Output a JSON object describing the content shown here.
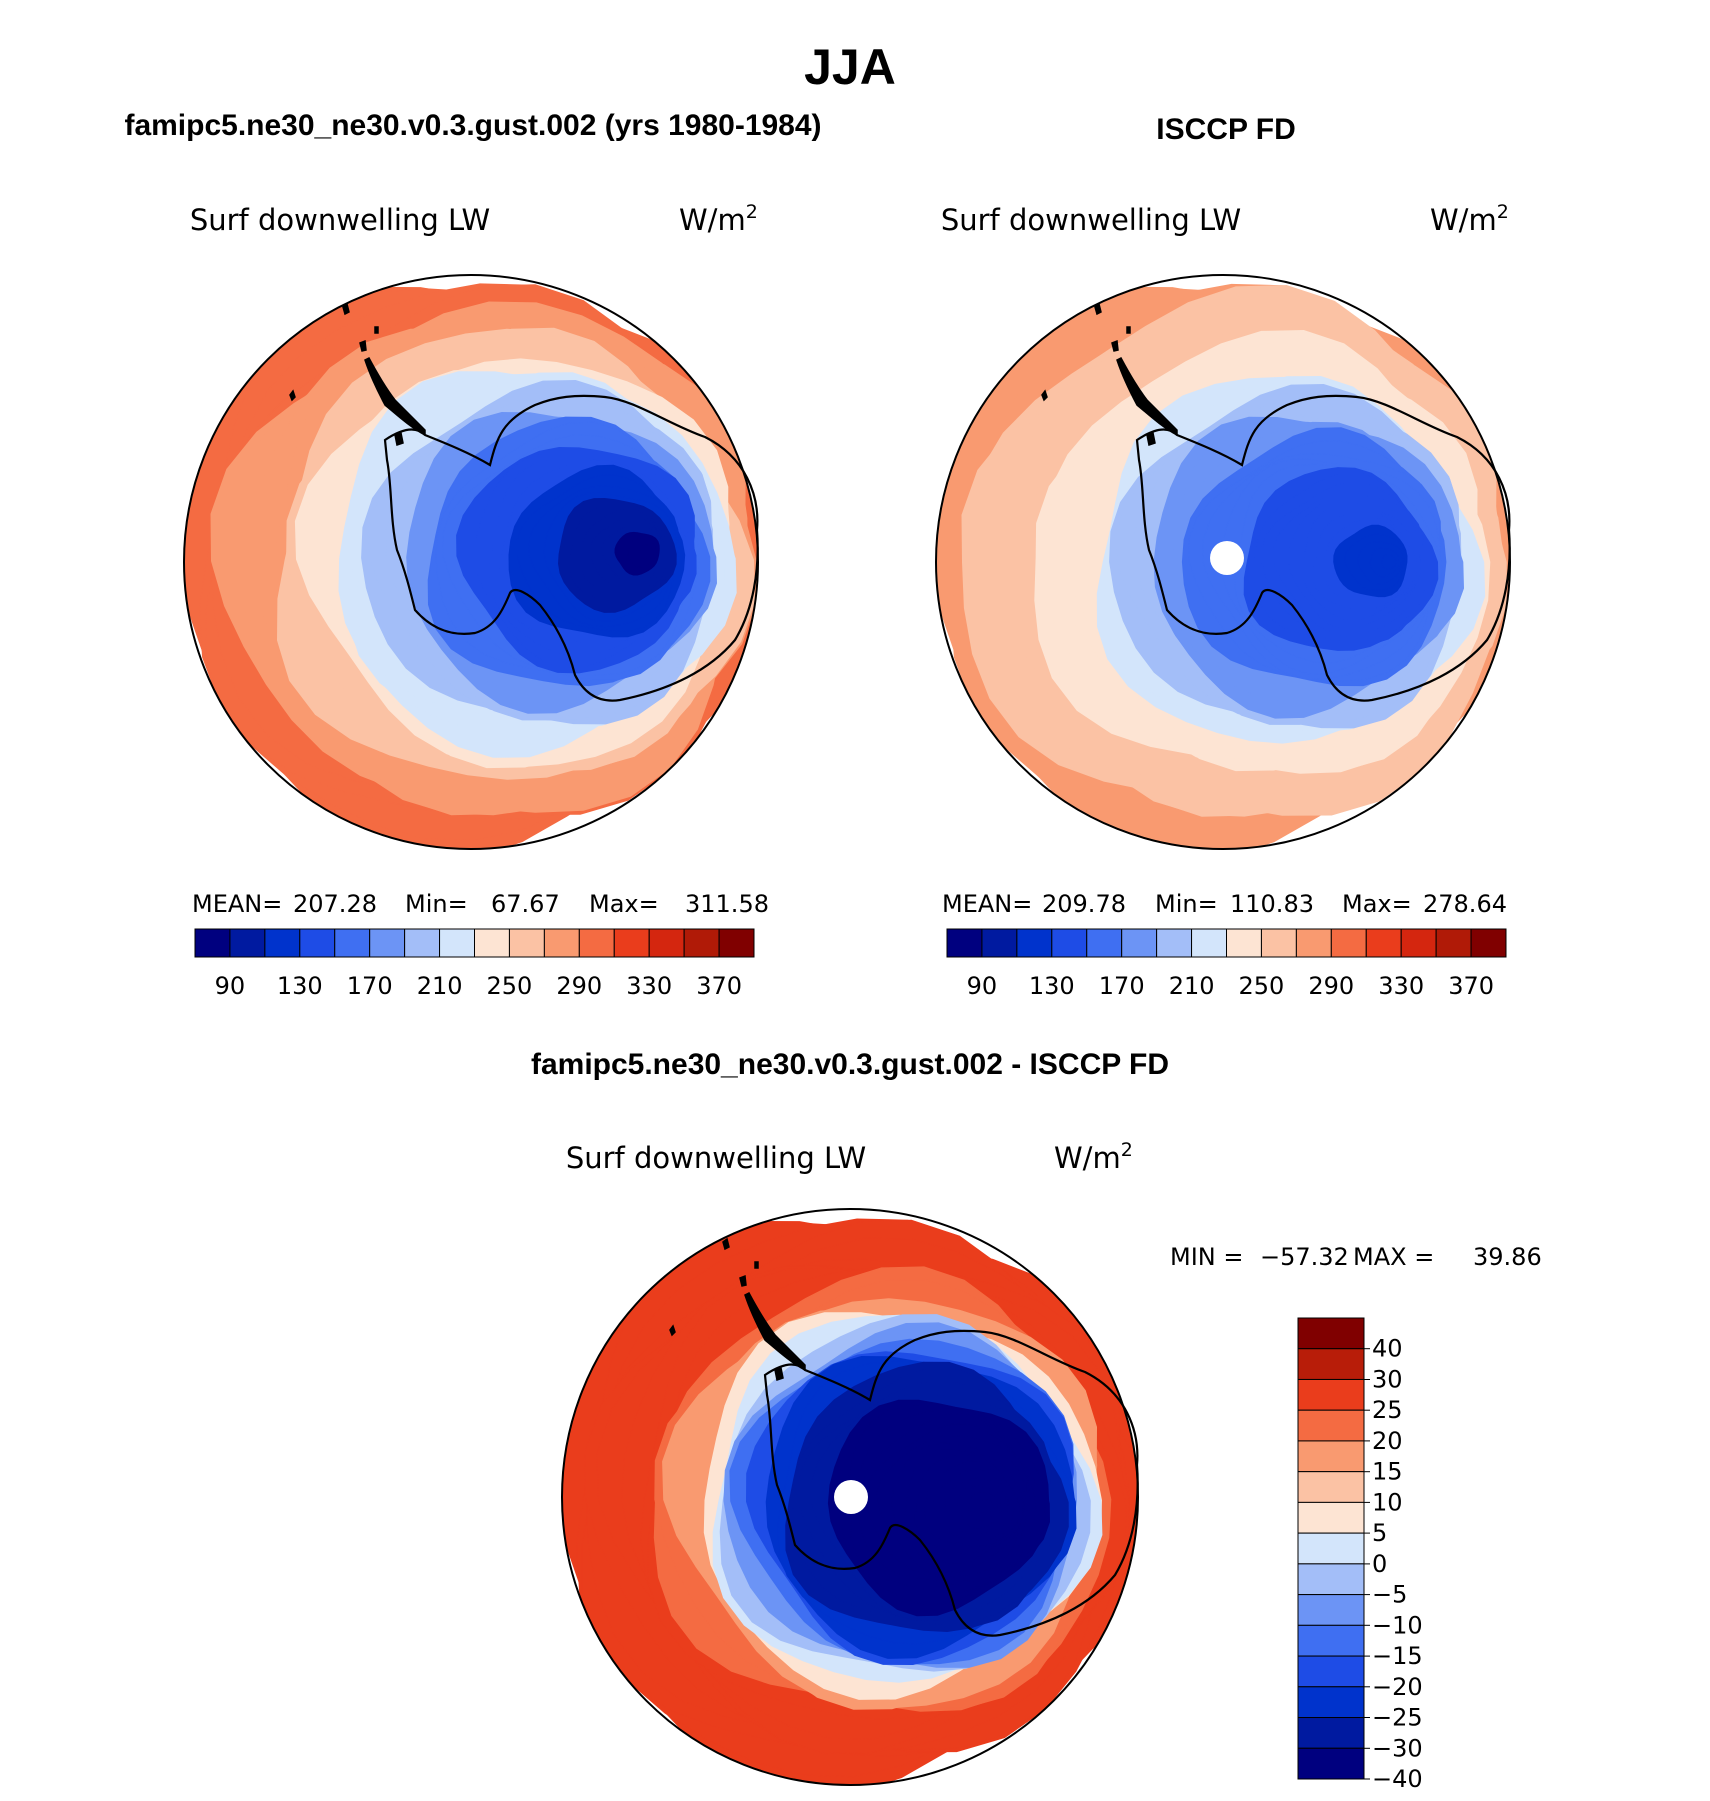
{
  "figure": {
    "season": "JJA",
    "panels": {
      "model": {
        "title": "famipc5.ne30_ne30.v0.3.gust.002 (yrs 1980-1984)",
        "variable": "Surf downwelling LW",
        "units_base": "W/m",
        "units_exp": "2",
        "stats": {
          "mean_label": "MEAN=",
          "mean": "207.28",
          "min_label": "Min=",
          "min": "67.67",
          "max_label": "Max=",
          "max": "311.58"
        }
      },
      "obs": {
        "title": "ISCCP FD",
        "variable": "Surf downwelling LW",
        "units_base": "W/m",
        "units_exp": "2",
        "stats": {
          "mean_label": "MEAN=",
          "mean": "209.78",
          "min_label": "Min=",
          "min": "110.83",
          "max_label": "Max=",
          "max": "278.64"
        }
      },
      "diff": {
        "title": "famipc5.ne30_ne30.v0.3.gust.002 - ISCCP FD",
        "variable": "Surf downwelling LW",
        "units_base": "W/m",
        "units_exp": "2",
        "minmax": {
          "min_label": "MIN =",
          "min": "−57.32",
          "max_label": "MAX =",
          "max": "39.86"
        }
      }
    }
  },
  "chart_data": [
    {
      "type": "heatmap",
      "projection": "south-polar-stereographic",
      "title": "famipc5.ne30_ne30.v0.3.gust.002 (yrs 1980-1984)",
      "variable": "Surf downwelling LW",
      "units": "W/m2",
      "mean": 207.28,
      "min": 67.67,
      "max": 311.58,
      "colorbar_levels": [
        70,
        90,
        110,
        130,
        150,
        170,
        190,
        210,
        230,
        250,
        270,
        290,
        310,
        330,
        350,
        370
      ],
      "colorbar_tick_labels": [
        "90",
        "130",
        "170",
        "210",
        "250",
        "290",
        "330",
        "370"
      ],
      "zonal_profile": {
        "radius_fraction": [
          0.0,
          0.15,
          0.3,
          0.45,
          0.55,
          0.65,
          0.75,
          0.85,
          1.0
        ],
        "value": [
          80,
          95,
          125,
          160,
          190,
          220,
          250,
          280,
          305
        ]
      }
    },
    {
      "type": "heatmap",
      "projection": "south-polar-stereographic",
      "title": "ISCCP FD",
      "variable": "Surf downwelling LW",
      "units": "W/m2",
      "mean": 209.78,
      "min": 110.83,
      "max": 278.64,
      "colorbar_levels": [
        70,
        90,
        110,
        130,
        150,
        170,
        190,
        210,
        230,
        250,
        270,
        290,
        310,
        330,
        350,
        370
      ],
      "colorbar_tick_labels": [
        "90",
        "130",
        "170",
        "210",
        "250",
        "290",
        "330",
        "370"
      ],
      "zonal_profile": {
        "radius_fraction": [
          0.0,
          0.15,
          0.3,
          0.45,
          0.55,
          0.65,
          0.75,
          0.85,
          1.0
        ],
        "value": [
          125,
          130,
          145,
          165,
          195,
          225,
          245,
          260,
          275
        ]
      }
    },
    {
      "type": "heatmap",
      "projection": "south-polar-stereographic",
      "title": "famipc5.ne30_ne30.v0.3.gust.002 - ISCCP FD",
      "variable": "Surf downwelling LW",
      "units": "W/m2",
      "min": -57.32,
      "max": 39.86,
      "colorbar_levels": [
        -40,
        -30,
        -25,
        -20,
        -15,
        -10,
        -5,
        0,
        5,
        10,
        15,
        20,
        25,
        30,
        40
      ],
      "colorbar_tick_labels": [
        "40",
        "30",
        "25",
        "20",
        "15",
        "10",
        "5",
        "0",
        "−5",
        "−10",
        "−15",
        "−20",
        "−25",
        "−30",
        "−40"
      ],
      "zonal_profile": {
        "radius_fraction": [
          0.0,
          0.2,
          0.4,
          0.55,
          0.62,
          0.7,
          0.8,
          1.0
        ],
        "value": [
          -40,
          -35,
          -30,
          -20,
          -5,
          15,
          25,
          28
        ]
      }
    }
  ],
  "colors": {
    "model_obs_palette": [
      "#00007f",
      "#001aa0",
      "#0033cc",
      "#1e4ce6",
      "#3f6ff2",
      "#6c94f5",
      "#a3bef8",
      "#d3e5fb",
      "#fde4d3",
      "#fbc2a4",
      "#f99a70",
      "#f46b42",
      "#ea3d1c",
      "#d4260f",
      "#b01a07",
      "#800000"
    ],
    "diff_palette": [
      "#00007f",
      "#001aa0",
      "#0033cc",
      "#1e4ce6",
      "#3f6ff2",
      "#6c94f5",
      "#a3bef8",
      "#d3e5fb",
      "#fde4d3",
      "#fbc2a4",
      "#f99a70",
      "#f46b42",
      "#ea3d1c",
      "#b81d09",
      "#800000"
    ],
    "coastline": "#000000",
    "missing": "#ffffff"
  }
}
